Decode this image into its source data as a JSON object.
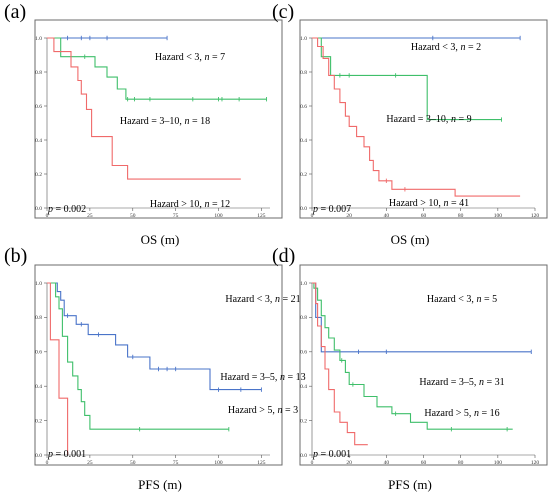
{
  "chart_data": [
    {
      "panel": "(a)",
      "type": "line",
      "xlabel": "OS (m)",
      "xlim": [
        0,
        130
      ],
      "ylim": [
        0,
        1
      ],
      "x_ticks": [
        0,
        25,
        50,
        75,
        100,
        125
      ],
      "y_ticks": [
        "0.0",
        "0.2",
        "0.4",
        "0.6",
        "0.8",
        "1.0"
      ],
      "p_text": "= 0.002",
      "series": [
        {
          "color": "#4a74c9",
          "steps": [
            [
              0,
              1.0
            ],
            [
              70,
              1.0
            ]
          ],
          "censors": [
            [
              12,
              1.0
            ],
            [
              20,
              1.0
            ],
            [
              25,
              1.0
            ],
            [
              35,
              1.0
            ],
            [
              70,
              1.0
            ]
          ]
        },
        {
          "color": "#3fbf6a",
          "steps": [
            [
              0,
              1.0
            ],
            [
              8,
              1.0
            ],
            [
              8,
              0.89
            ],
            [
              28,
              0.89
            ],
            [
              28,
              0.83
            ],
            [
              35,
              0.83
            ],
            [
              35,
              0.77
            ],
            [
              41,
              0.77
            ],
            [
              41,
              0.7
            ],
            [
              46,
              0.7
            ],
            [
              46,
              0.64
            ],
            [
              128,
              0.64
            ]
          ],
          "censors": [
            [
              22,
              0.89
            ],
            [
              47,
              0.64
            ],
            [
              51,
              0.64
            ],
            [
              60,
              0.64
            ],
            [
              85,
              0.64
            ],
            [
              100,
              0.64
            ],
            [
              102,
              0.64
            ],
            [
              112,
              0.64
            ],
            [
              128,
              0.64
            ]
          ]
        },
        {
          "color": "#f06a6a",
          "steps": [
            [
              0,
              1.0
            ],
            [
              4,
              1.0
            ],
            [
              4,
              0.92
            ],
            [
              14,
              0.92
            ],
            [
              14,
              0.83
            ],
            [
              18,
              0.83
            ],
            [
              18,
              0.75
            ],
            [
              20,
              0.75
            ],
            [
              20,
              0.67
            ],
            [
              23,
              0.67
            ],
            [
              23,
              0.58
            ],
            [
              26,
              0.58
            ],
            [
              26,
              0.42
            ],
            [
              38,
              0.42
            ],
            [
              38,
              0.25
            ],
            [
              47,
              0.25
            ],
            [
              47,
              0.17
            ],
            [
              113,
              0.17
            ]
          ],
          "censors": []
        }
      ],
      "labels": [
        "Hazard < 3, n = 7",
        "Hazard = 3–10, n = 18",
        "Hazard > 10, n = 12"
      ]
    },
    {
      "panel": "(c)",
      "type": "line",
      "xlabel": "OS (m)",
      "xlim": [
        0,
        120
      ],
      "ylim": [
        0,
        1
      ],
      "x_ticks": [
        0,
        20,
        40,
        60,
        80,
        100,
        120
      ],
      "y_ticks": [
        "0.0",
        "0.2",
        "0.4",
        "0.6",
        "0.8",
        "1.0"
      ],
      "p_text": "= 0.007",
      "series": [
        {
          "color": "#4a74c9",
          "steps": [
            [
              0,
              1.0
            ],
            [
              112,
              1.0
            ]
          ],
          "censors": [
            [
              65,
              1.0
            ],
            [
              112,
              1.0
            ]
          ]
        },
        {
          "color": "#3fbf6a",
          "steps": [
            [
              0,
              1.0
            ],
            [
              5,
              1.0
            ],
            [
              5,
              0.89
            ],
            [
              10,
              0.89
            ],
            [
              10,
              0.78
            ],
            [
              62,
              0.78
            ],
            [
              62,
              0.52
            ],
            [
              102,
              0.52
            ]
          ],
          "censors": [
            [
              15,
              0.78
            ],
            [
              20,
              0.78
            ],
            [
              45,
              0.78
            ],
            [
              102,
              0.52
            ]
          ]
        },
        {
          "color": "#f06a6a",
          "steps": [
            [
              0,
              1.0
            ],
            [
              3,
              1.0
            ],
            [
              3,
              0.95
            ],
            [
              6,
              0.95
            ],
            [
              6,
              0.88
            ],
            [
              9,
              0.88
            ],
            [
              9,
              0.78
            ],
            [
              12,
              0.78
            ],
            [
              12,
              0.7
            ],
            [
              15,
              0.7
            ],
            [
              15,
              0.62
            ],
            [
              18,
              0.62
            ],
            [
              18,
              0.54
            ],
            [
              20,
              0.54
            ],
            [
              20,
              0.48
            ],
            [
              24,
              0.48
            ],
            [
              24,
              0.42
            ],
            [
              28,
              0.42
            ],
            [
              28,
              0.36
            ],
            [
              31,
              0.36
            ],
            [
              31,
              0.28
            ],
            [
              33,
              0.28
            ],
            [
              33,
              0.22
            ],
            [
              36,
              0.22
            ],
            [
              36,
              0.16
            ],
            [
              43,
              0.16
            ],
            [
              43,
              0.11
            ],
            [
              77,
              0.11
            ],
            [
              77,
              0.07
            ],
            [
              112,
              0.07
            ]
          ],
          "censors": [
            [
              40,
              0.16
            ],
            [
              50,
              0.11
            ]
          ]
        }
      ],
      "labels": [
        "Hazard < 3, n = 2",
        "Hazard = 3–10, n = 9",
        "Hazard > 10, n = 41"
      ]
    },
    {
      "panel": "(b)",
      "type": "line",
      "xlabel": "PFS (m)",
      "xlim": [
        0,
        130
      ],
      "ylim": [
        0,
        1
      ],
      "x_ticks": [
        0,
        25,
        50,
        75,
        100,
        125
      ],
      "y_ticks": [
        "0.0",
        "0.2",
        "0.4",
        "0.6",
        "0.8",
        "1.0"
      ],
      "p_text": "= 0.001",
      "series": [
        {
          "color": "#4a74c9",
          "steps": [
            [
              0,
              1.0
            ],
            [
              6,
              1.0
            ],
            [
              6,
              0.95
            ],
            [
              8,
              0.95
            ],
            [
              8,
              0.9
            ],
            [
              10,
              0.9
            ],
            [
              10,
              0.81
            ],
            [
              17,
              0.81
            ],
            [
              17,
              0.76
            ],
            [
              24,
              0.76
            ],
            [
              24,
              0.7
            ],
            [
              40,
              0.7
            ],
            [
              40,
              0.64
            ],
            [
              47,
              0.64
            ],
            [
              47,
              0.57
            ],
            [
              60,
              0.57
            ],
            [
              60,
              0.5
            ],
            [
              95,
              0.5
            ],
            [
              95,
              0.38
            ],
            [
              125,
              0.38
            ]
          ],
          "censors": [
            [
              12,
              0.81
            ],
            [
              20,
              0.76
            ],
            [
              30,
              0.7
            ],
            [
              50,
              0.57
            ],
            [
              65,
              0.5
            ],
            [
              70,
              0.5
            ],
            [
              75,
              0.5
            ],
            [
              100,
              0.38
            ],
            [
              113,
              0.38
            ],
            [
              125,
              0.38
            ]
          ]
        },
        {
          "color": "#3fbf6a",
          "steps": [
            [
              0,
              1.0
            ],
            [
              5,
              1.0
            ],
            [
              5,
              0.92
            ],
            [
              7,
              0.92
            ],
            [
              7,
              0.85
            ],
            [
              9,
              0.85
            ],
            [
              9,
              0.69
            ],
            [
              12,
              0.69
            ],
            [
              12,
              0.54
            ],
            [
              15,
              0.54
            ],
            [
              15,
              0.46
            ],
            [
              18,
              0.46
            ],
            [
              18,
              0.38
            ],
            [
              20,
              0.38
            ],
            [
              20,
              0.31
            ],
            [
              22,
              0.31
            ],
            [
              22,
              0.23
            ],
            [
              25,
              0.23
            ],
            [
              25,
              0.15
            ],
            [
              106,
              0.15
            ]
          ],
          "censors": [
            [
              54,
              0.15
            ],
            [
              106,
              0.15
            ]
          ]
        },
        {
          "color": "#f06a6a",
          "steps": [
            [
              0,
              1.0
            ],
            [
              2,
              1.0
            ],
            [
              2,
              0.67
            ],
            [
              7,
              0.67
            ],
            [
              7,
              0.33
            ],
            [
              12,
              0.33
            ],
            [
              12,
              0.0
            ]
          ],
          "censors": []
        }
      ],
      "labels": [
        "Hazard < 3, n = 21",
        "Hazard = 3–5, n = 13",
        "Hazard > 5, n = 3"
      ]
    },
    {
      "panel": "(d)",
      "type": "line",
      "xlabel": "PFS (m)",
      "xlim": [
        0,
        120
      ],
      "ylim": [
        0,
        1
      ],
      "x_ticks": [
        0,
        20,
        40,
        60,
        80,
        100,
        120
      ],
      "y_ticks": [
        "0.0",
        "0.2",
        "0.4",
        "0.6",
        "0.8",
        "1.0"
      ],
      "p_text": "= 0.001",
      "series": [
        {
          "color": "#4a74c9",
          "steps": [
            [
              0,
              1.0
            ],
            [
              2,
              1.0
            ],
            [
              2,
              0.8
            ],
            [
              5,
              0.8
            ],
            [
              5,
              0.6
            ],
            [
              118,
              0.6
            ]
          ],
          "censors": [
            [
              25,
              0.6
            ],
            [
              40,
              0.6
            ],
            [
              118,
              0.6
            ]
          ]
        },
        {
          "color": "#3fbf6a",
          "steps": [
            [
              0,
              1.0
            ],
            [
              1,
              1.0
            ],
            [
              1,
              0.97
            ],
            [
              3,
              0.97
            ],
            [
              3,
              0.9
            ],
            [
              5,
              0.9
            ],
            [
              5,
              0.81
            ],
            [
              7,
              0.81
            ],
            [
              7,
              0.74
            ],
            [
              9,
              0.74
            ],
            [
              9,
              0.68
            ],
            [
              12,
              0.68
            ],
            [
              12,
              0.61
            ],
            [
              15,
              0.61
            ],
            [
              15,
              0.55
            ],
            [
              18,
              0.55
            ],
            [
              18,
              0.48
            ],
            [
              20,
              0.48
            ],
            [
              20,
              0.41
            ],
            [
              28,
              0.41
            ],
            [
              28,
              0.34
            ],
            [
              35,
              0.34
            ],
            [
              35,
              0.28
            ],
            [
              43,
              0.28
            ],
            [
              43,
              0.24
            ],
            [
              53,
              0.24
            ],
            [
              53,
              0.19
            ],
            [
              62,
              0.19
            ],
            [
              62,
              0.15
            ],
            [
              108,
              0.15
            ]
          ],
          "censors": [
            [
              16,
              0.55
            ],
            [
              22,
              0.41
            ],
            [
              45,
              0.24
            ],
            [
              75,
              0.15
            ],
            [
              105,
              0.15
            ]
          ]
        },
        {
          "color": "#f06a6a",
          "steps": [
            [
              0,
              1.0
            ],
            [
              2,
              1.0
            ],
            [
              2,
              0.88
            ],
            [
              3,
              0.88
            ],
            [
              3,
              0.75
            ],
            [
              5,
              0.75
            ],
            [
              5,
              0.63
            ],
            [
              7,
              0.63
            ],
            [
              7,
              0.5
            ],
            [
              9,
              0.5
            ],
            [
              9,
              0.38
            ],
            [
              12,
              0.38
            ],
            [
              12,
              0.25
            ],
            [
              15,
              0.25
            ],
            [
              15,
              0.19
            ],
            [
              19,
              0.19
            ],
            [
              19,
              0.13
            ],
            [
              23,
              0.13
            ],
            [
              23,
              0.06
            ],
            [
              30,
              0.06
            ]
          ],
          "censors": []
        }
      ],
      "labels": [
        "Hazard < 3, n = 5",
        "Hazard = 3–5, n = 31",
        "Hazard > 5, n = 16"
      ]
    }
  ]
}
